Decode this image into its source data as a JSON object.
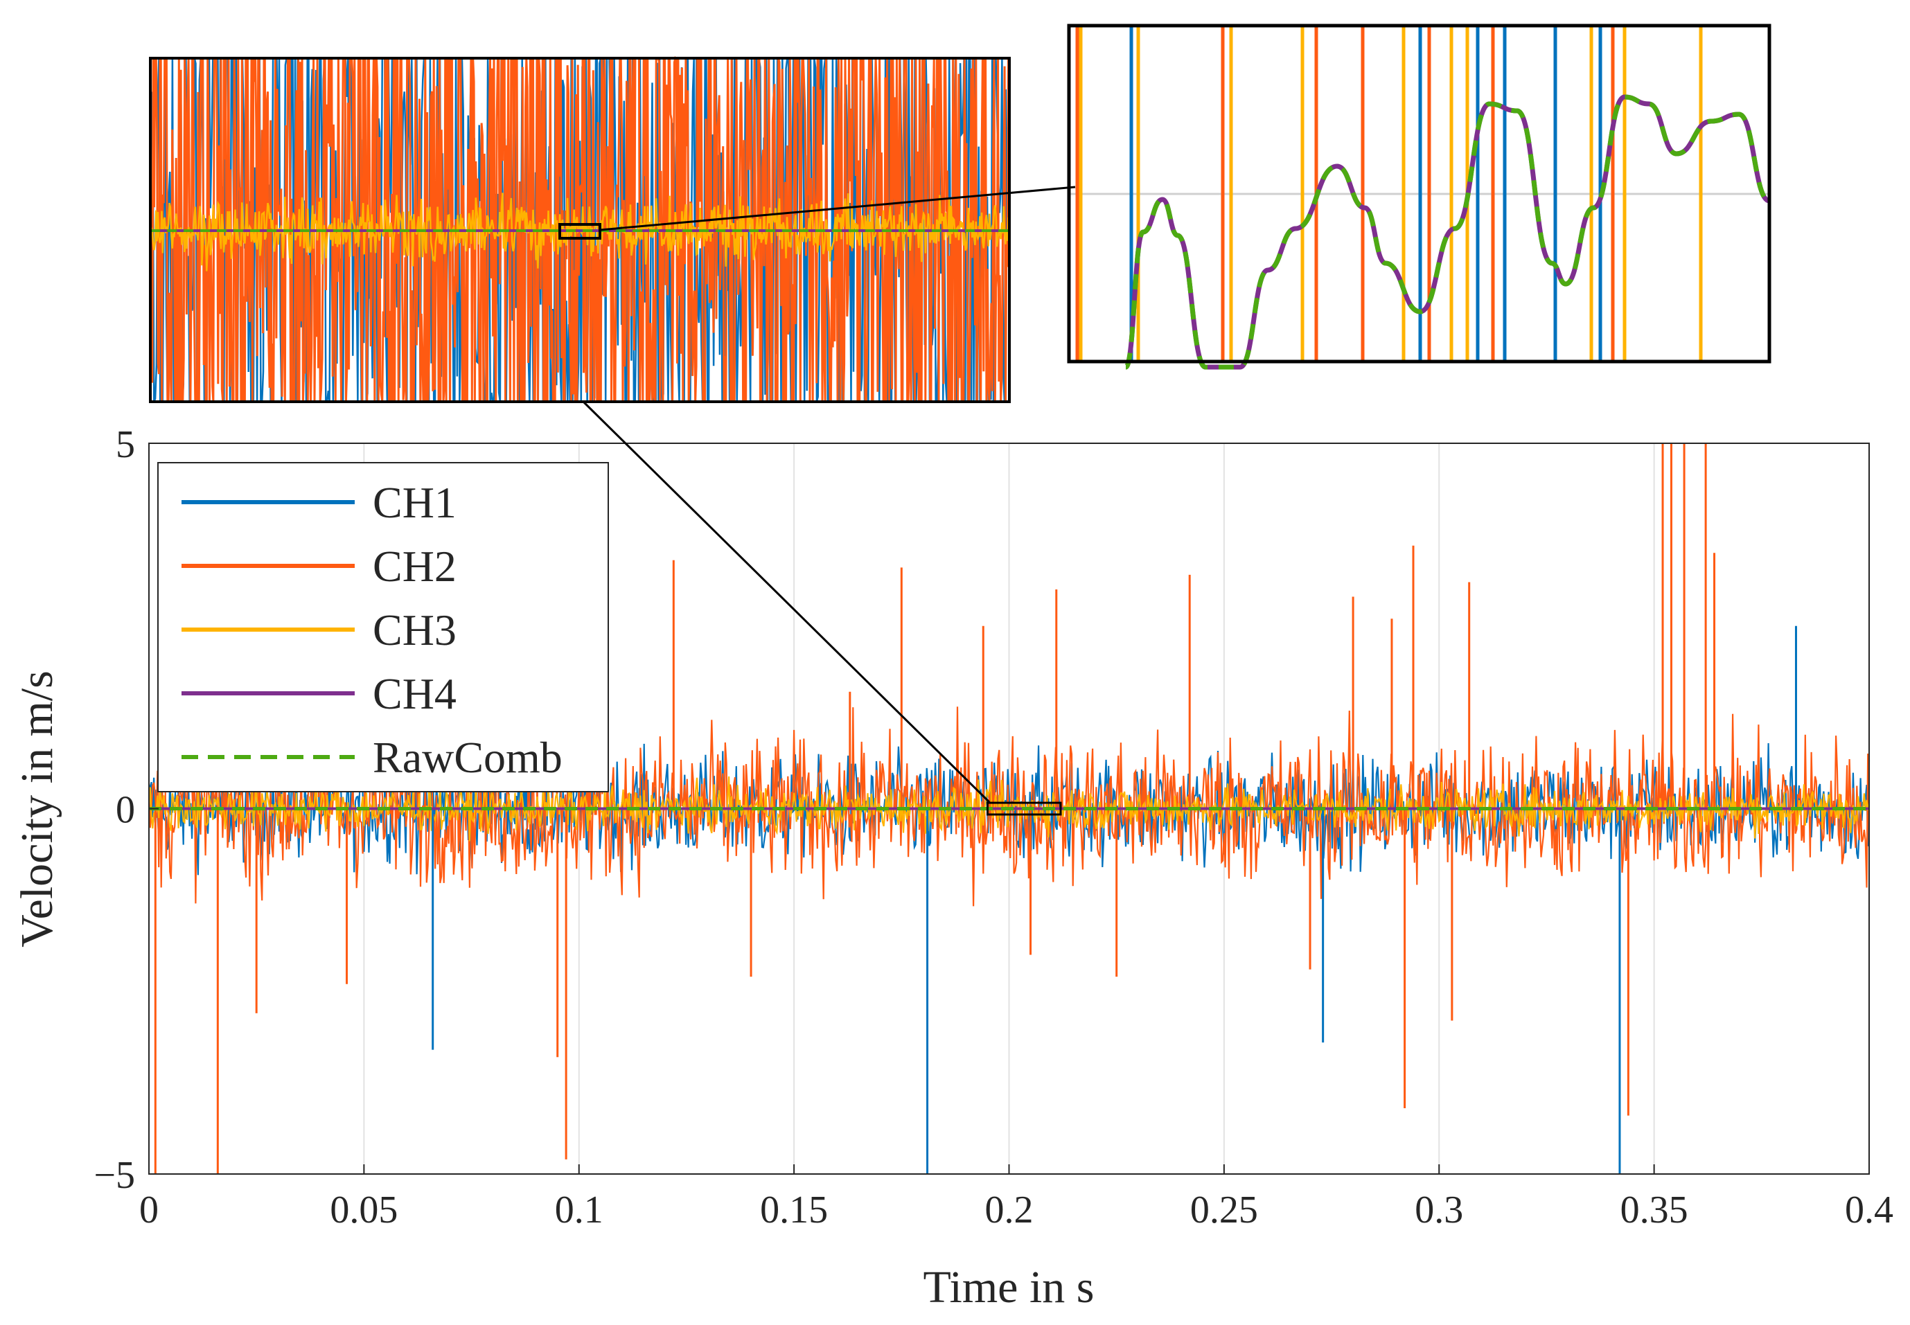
{
  "chart_data": {
    "type": "line",
    "xlabel": "Time in s",
    "ylabel": "Velocity in m/s",
    "xlim": [
      0,
      0.4
    ],
    "ylim": [
      -5,
      5
    ],
    "x_ticks": [
      0,
      0.05,
      0.1,
      0.15,
      0.2,
      0.25,
      0.3,
      0.35,
      0.4
    ],
    "x_tick_labels": [
      "0",
      "0.05",
      "0.1",
      "0.15",
      "0.2",
      "0.25",
      "0.3",
      "0.35",
      "0.4"
    ],
    "y_ticks": [
      -5,
      0,
      5
    ],
    "y_tick_labels": [
      "−5",
      "0",
      "5"
    ],
    "grid": "vertical",
    "legend_position": "top-left",
    "series": [
      {
        "name": "CH1",
        "color": "#0072BD",
        "style": "solid",
        "noise_rms_ms": 0.35
      },
      {
        "name": "CH2",
        "color": "#FF5A12",
        "style": "solid",
        "noise_rms_ms": 0.5
      },
      {
        "name": "CH3",
        "color": "#FFB300",
        "style": "solid",
        "noise_rms_ms": 0.15
      },
      {
        "name": "CH4",
        "color": "#7E2F8E",
        "style": "solid",
        "noise_rms_ms": 0.0
      },
      {
        "name": "RawComb",
        "color": "#4DAA12",
        "style": "dashed",
        "noise_rms_ms": 0.0
      }
    ],
    "spikes": [
      {
        "x": 0.0015,
        "y": -5.0
      },
      {
        "x": 0.016,
        "y": -5.0
      },
      {
        "x": 0.025,
        "y": -2.8
      },
      {
        "x": 0.046,
        "y": -2.4
      },
      {
        "x": 0.066,
        "y": -3.3
      },
      {
        "x": 0.095,
        "y": -3.4
      },
      {
        "x": 0.097,
        "y": -4.8
      },
      {
        "x": 0.122,
        "y": 3.4
      },
      {
        "x": 0.14,
        "y": -2.3
      },
      {
        "x": 0.163,
        "y": 1.6
      },
      {
        "x": 0.175,
        "y": 3.3
      },
      {
        "x": 0.181,
        "y": -5.0
      },
      {
        "x": 0.194,
        "y": 2.5
      },
      {
        "x": 0.205,
        "y": -2.0
      },
      {
        "x": 0.211,
        "y": 3.0
      },
      {
        "x": 0.225,
        "y": -2.3
      },
      {
        "x": 0.242,
        "y": 3.2
      },
      {
        "x": 0.27,
        "y": -2.2
      },
      {
        "x": 0.273,
        "y": -3.2
      },
      {
        "x": 0.28,
        "y": 2.9
      },
      {
        "x": 0.289,
        "y": 2.6
      },
      {
        "x": 0.292,
        "y": -4.1
      },
      {
        "x": 0.294,
        "y": 3.6
      },
      {
        "x": 0.303,
        "y": -2.9
      },
      {
        "x": 0.307,
        "y": 3.1
      },
      {
        "x": 0.342,
        "y": -5.0
      },
      {
        "x": 0.344,
        "y": -4.2
      },
      {
        "x": 0.352,
        "y": 5.0
      },
      {
        "x": 0.354,
        "y": 5.0
      },
      {
        "x": 0.357,
        "y": 5.0
      },
      {
        "x": 0.362,
        "y": 5.0
      },
      {
        "x": 0.364,
        "y": 3.5
      },
      {
        "x": 0.383,
        "y": 2.5
      }
    ],
    "zoom_rectangle": {
      "x_range": [
        0.195,
        0.212
      ],
      "y_range": [
        -0.08,
        0.08
      ]
    }
  }
}
